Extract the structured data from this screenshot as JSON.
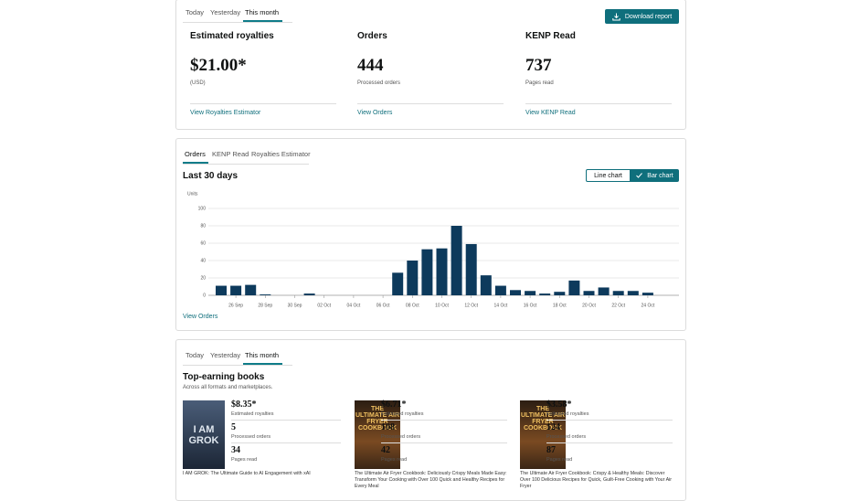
{
  "summary": {
    "tabs": [
      "Today",
      "Yesterday",
      "This month"
    ],
    "download_button": "Download report",
    "metrics": [
      {
        "label": "Estimated royalties",
        "value": "$21.00*",
        "caption": "(USD)",
        "link": "View Royalties Estimator"
      },
      {
        "label": "Orders",
        "value": "444",
        "caption": "Processed orders",
        "link": "View Orders"
      },
      {
        "label": "KENP Read",
        "value": "737",
        "caption": "Pages read",
        "link": "View KENP Read"
      }
    ]
  },
  "chart_panel": {
    "tabs": [
      "Orders",
      "KENP Read",
      "Royalties Estimator"
    ],
    "toggle": [
      "Line chart",
      "Bar chart"
    ],
    "link": "View Orders"
  },
  "chart_data": {
    "type": "bar",
    "title": "Last 30 days",
    "y_label": "Units",
    "categories": [
      null,
      "26 Sep",
      null,
      "28 Sep",
      null,
      "30 Sep",
      null,
      "02 Oct",
      null,
      "04 Oct",
      null,
      "06 Oct",
      null,
      "08 Oct",
      null,
      "10 Oct",
      null,
      "12 Oct",
      null,
      "14 Oct",
      null,
      "16 Oct",
      null,
      "18 Oct",
      null,
      "20 Oct",
      null,
      "22 Oct",
      null,
      "24 Oct"
    ],
    "values": [
      11,
      11,
      12,
      1,
      0,
      0,
      2,
      0,
      0,
      0,
      0,
      0,
      26,
      40,
      53,
      54,
      80,
      59,
      23,
      11,
      6,
      5,
      2,
      4,
      17,
      5,
      9,
      5,
      5,
      3
    ],
    "color": "#0d3a5c",
    "ylim": [
      0,
      100
    ],
    "yticks": [
      0,
      20,
      40,
      60,
      80,
      100
    ],
    "grid": true
  },
  "books": {
    "tabs": [
      "Today",
      "Yesterday",
      "This month"
    ],
    "title": "Top-earning books",
    "subtitle": "Across all formats and marketplaces.",
    "items": [
      {
        "cover_text": "I AM GROK",
        "royalties": "$8.35*",
        "royalties_label": "Estimated royalties",
        "orders": "5",
        "orders_label": "Processed orders",
        "pages": "34",
        "pages_label": "Pages read",
        "title": "I AM GROK: The Ultimate Guide to AI Engagement with xAI"
      },
      {
        "cover_text": "THE ULTIMATE AIR FRYER COOKBOOK",
        "royalties": "$6.71*",
        "royalties_label": "Estimated royalties",
        "orders": "108",
        "orders_label": "Processed orders",
        "pages": "42",
        "pages_label": "Pages read",
        "title": "The Ultimate Air Fryer Cookbook: Deliciously Crispy Meals Made Easy: Transform Your Cooking with Over 100 Quick and Healthy Recipes for Every Meal"
      },
      {
        "cover_text": "THE ULTIMATE AIR FRYER COOKBOOK",
        "royalties": "$3.58*",
        "royalties_label": "Estimated royalties",
        "orders": "124",
        "orders_label": "Processed orders",
        "pages": "87",
        "pages_label": "Pages read",
        "title": "The Ultimate Air Fryer Cookbook: Crispy & Healthy Meals: Discover Over 100 Delicious Recipes for Quick, Guilt-Free Cooking with Your Air Fryer"
      }
    ]
  }
}
